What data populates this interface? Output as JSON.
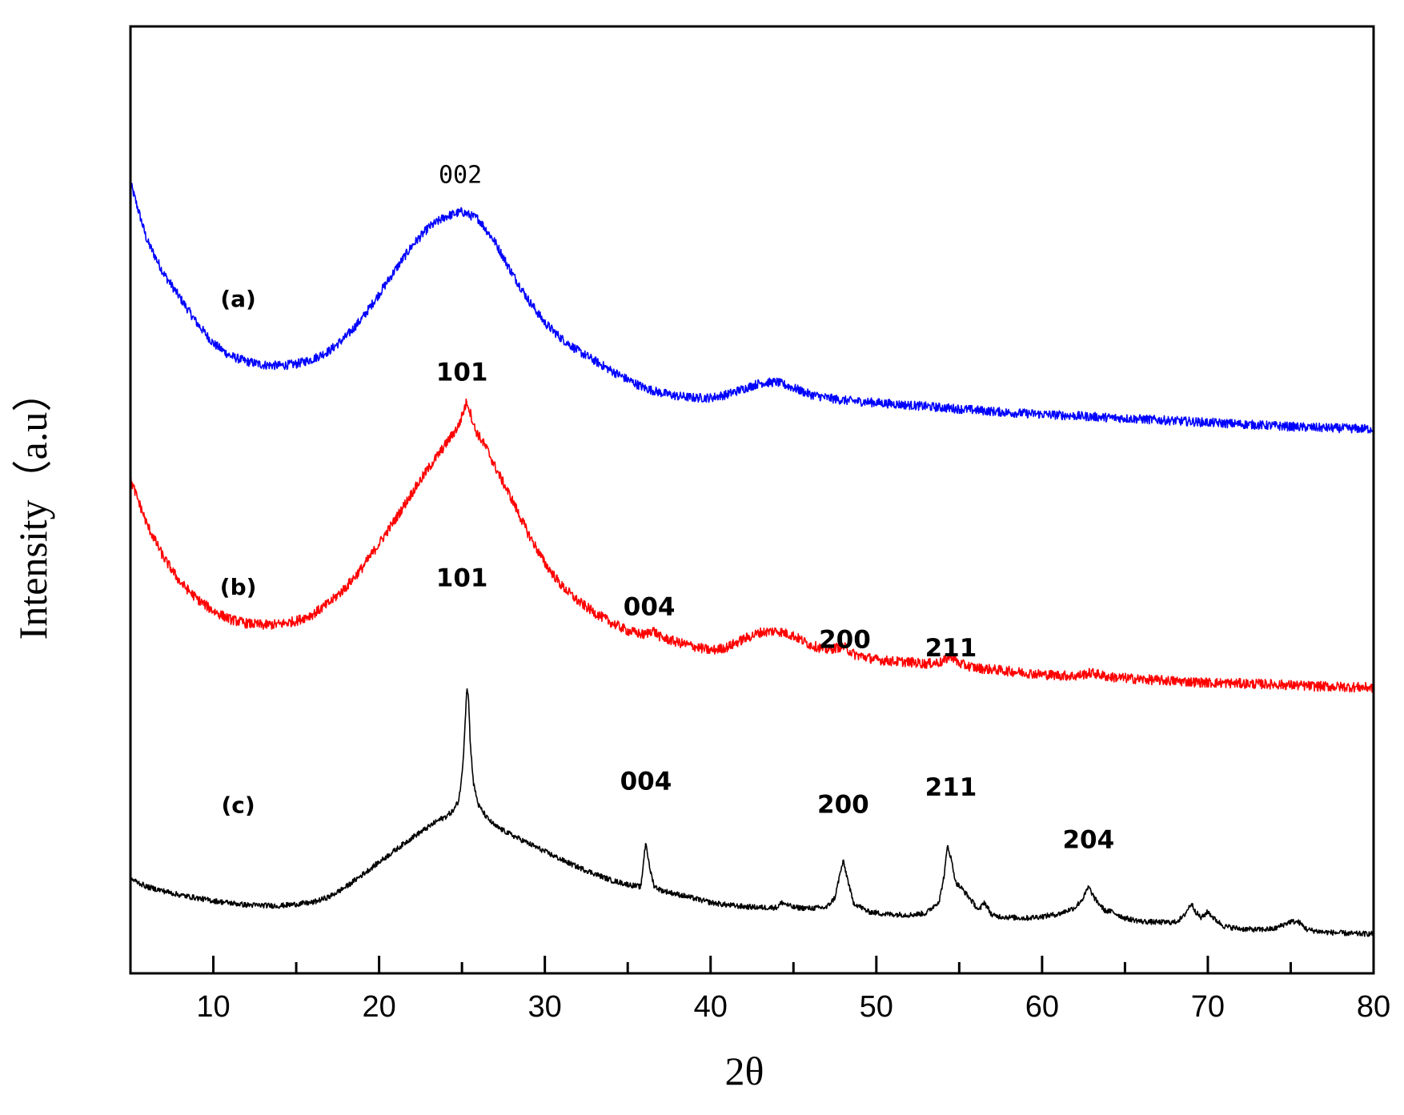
{
  "chart_data": {
    "type": "line",
    "xlabel": "2θ",
    "ylabel": "Intensity（a.u）",
    "xlim": [
      5,
      80
    ],
    "ylim": [
      0,
      115
    ],
    "x_ticks": [
      10,
      20,
      30,
      40,
      50,
      60,
      70,
      80
    ],
    "x_tick_labels": [
      "10",
      "20",
      "30",
      "40",
      "50",
      "60",
      "70",
      "80"
    ],
    "y_ticks_shown": false,
    "grid": false,
    "series": [
      {
        "name": "(a)",
        "color": "#0000ff",
        "x": [
          5,
          6,
          7,
          8,
          9,
          10,
          11,
          12,
          13,
          14,
          15,
          16,
          17,
          18,
          19,
          20,
          21,
          22,
          23,
          24,
          25,
          26,
          27,
          28,
          29,
          30,
          31,
          32,
          33,
          34,
          35,
          36,
          37,
          38,
          39,
          40,
          41,
          42,
          43,
          44,
          45,
          46,
          47,
          48,
          50,
          52,
          54,
          56,
          58,
          60,
          62,
          64,
          66,
          68,
          70,
          72,
          74,
          76,
          78,
          80
        ],
        "y": [
          96,
          89,
          85,
          82,
          79,
          76.5,
          75,
          74.3,
          73.9,
          73.8,
          74,
          74.6,
          75.6,
          77.3,
          79.6,
          82.5,
          85.5,
          88.4,
          90.6,
          91.9,
          92.5,
          91.6,
          88.8,
          85.1,
          81.8,
          79,
          77.1,
          75.6,
          74.4,
          73.2,
          72.1,
          71.1,
          70.5,
          70.1,
          69.9,
          69.9,
          70.3,
          71,
          71.7,
          71.8,
          71.1,
          70.3,
          69.9,
          69.6,
          69.3,
          69,
          68.7,
          68.4,
          68.1,
          67.9,
          67.7,
          67.5,
          67.3,
          67.1,
          66.9,
          66.7,
          66.5,
          66.3,
          66.2,
          66.1
        ]
      },
      {
        "name": "(b)",
        "color": "#ff0000",
        "x": [
          5,
          6,
          7,
          8,
          9,
          10,
          11,
          12,
          13,
          14,
          15,
          16,
          17,
          18,
          19,
          20,
          21,
          22,
          23,
          24,
          24.8,
          25.3,
          25.8,
          26.5,
          27,
          28,
          29,
          30,
          31,
          32,
          33,
          34,
          35,
          36,
          36.5,
          37,
          38,
          39,
          40,
          41,
          42,
          43,
          44,
          45,
          46,
          47,
          48,
          48.7,
          50,
          51,
          52,
          53,
          54,
          54.5,
          55,
          56,
          58,
          60,
          62,
          63,
          64,
          66,
          68,
          70,
          72,
          74,
          76,
          78,
          80
        ],
        "y": [
          60,
          54.5,
          50.5,
          47.5,
          45.5,
          44,
          43,
          42.5,
          42.3,
          42.4,
          42.8,
          43.6,
          45,
          46.9,
          49.3,
          52.2,
          55.2,
          58.4,
          61.4,
          64.2,
          66.5,
          69.5,
          66,
          63.7,
          61.5,
          57.6,
          53.4,
          49.8,
          47.1,
          45.2,
          43.8,
          42.6,
          41.6,
          41.1,
          41.7,
          40.8,
          40.2,
          39.7,
          39.2,
          39.6,
          40.6,
          41.4,
          41.6,
          41,
          39.9,
          39.3,
          39.7,
          38.7,
          38.1,
          37.9,
          37.8,
          37.6,
          37.8,
          38.6,
          37.6,
          37.1,
          36.7,
          36.3,
          36.1,
          36.5,
          36,
          35.7,
          35.5,
          35.3,
          35.2,
          35.1,
          34.9,
          34.8,
          34.7
        ]
      },
      {
        "name": "(c)",
        "color": "#000000",
        "x": [
          5,
          6,
          8,
          10,
          12,
          14,
          16,
          17,
          18,
          19,
          20,
          21,
          22,
          23,
          23.5,
          24,
          24.5,
          24.8,
          25,
          25.1,
          25.2,
          25.3,
          25.4,
          25.5,
          25.7,
          26,
          26.5,
          27,
          28,
          29,
          30,
          31,
          32,
          33,
          34,
          35,
          35.8,
          36,
          36.1,
          36.3,
          36.6,
          37,
          38,
          39,
          40,
          41,
          42,
          43,
          44,
          44.3,
          45,
          46,
          47,
          47.5,
          47.8,
          48,
          48.2,
          48.6,
          49.5,
          50.5,
          52,
          53,
          53.8,
          54.1,
          54.3,
          54.5,
          54.8,
          55.2,
          55.6,
          56.2,
          56.5,
          57,
          58,
          59,
          60,
          61,
          62,
          62.5,
          62.8,
          63.2,
          63.8,
          64.2,
          65,
          66,
          67,
          68,
          68.5,
          69,
          69.3,
          69.6,
          70,
          70.4,
          71,
          72,
          73,
          74,
          75,
          75.5,
          76,
          77,
          78,
          79,
          80
        ],
        "y": [
          11.5,
          10.5,
          9.5,
          8.8,
          8.3,
          8.2,
          8.6,
          9.3,
          10.5,
          12,
          13.5,
          15,
          16.5,
          17.8,
          18.5,
          19,
          19.8,
          21,
          24,
          27,
          31,
          35,
          33.2,
          28,
          23,
          20.4,
          18.9,
          17.9,
          16.8,
          15.8,
          14.8,
          13.8,
          12.9,
          12.1,
          11.3,
          10.8,
          10.5,
          14.5,
          16,
          13,
          10.6,
          10.1,
          9.6,
          9.1,
          8.6,
          8.3,
          8.1,
          8,
          8,
          8.6,
          8,
          7.9,
          8,
          9.2,
          12,
          13.6,
          12,
          8.6,
          7.5,
          7.2,
          7.1,
          7.3,
          8.8,
          12,
          15.6,
          14,
          11,
          10.2,
          9.2,
          7.6,
          8.7,
          7,
          6.8,
          6.7,
          6.9,
          7.2,
          8,
          9.2,
          10.5,
          9,
          7.6,
          7.5,
          6.7,
          6.3,
          6.2,
          6.2,
          6.8,
          8.5,
          7.4,
          6.7,
          7.5,
          6.6,
          5.7,
          5.4,
          5.3,
          5.4,
          6.3,
          6.2,
          5.3,
          5,
          4.9,
          4.8,
          4.8
        ]
      }
    ],
    "curve_labels": [
      {
        "text": "(a)",
        "x": 11.5,
        "y": 81
      },
      {
        "text": "(b)",
        "x": 11.5,
        "y": 46
      },
      {
        "text": "(c)",
        "x": 11.5,
        "y": 19.5
      }
    ],
    "annotations": [
      {
        "text": "002",
        "x": 24.9,
        "y": 96,
        "style": "thin"
      },
      {
        "text": "101",
        "x": 25.0,
        "y": 72
      },
      {
        "text": "101",
        "x": 25.0,
        "y": 47
      },
      {
        "text": "004",
        "x": 36.3,
        "y": 43.5
      },
      {
        "text": "200",
        "x": 48.1,
        "y": 39.5
      },
      {
        "text": "211",
        "x": 54.5,
        "y": 38.5
      },
      {
        "text": "004",
        "x": 36.1,
        "y": 22.3
      },
      {
        "text": "200",
        "x": 48.0,
        "y": 19.5
      },
      {
        "text": "211",
        "x": 54.5,
        "y": 21.6
      },
      {
        "text": "204",
        "x": 62.8,
        "y": 15.2
      }
    ]
  }
}
